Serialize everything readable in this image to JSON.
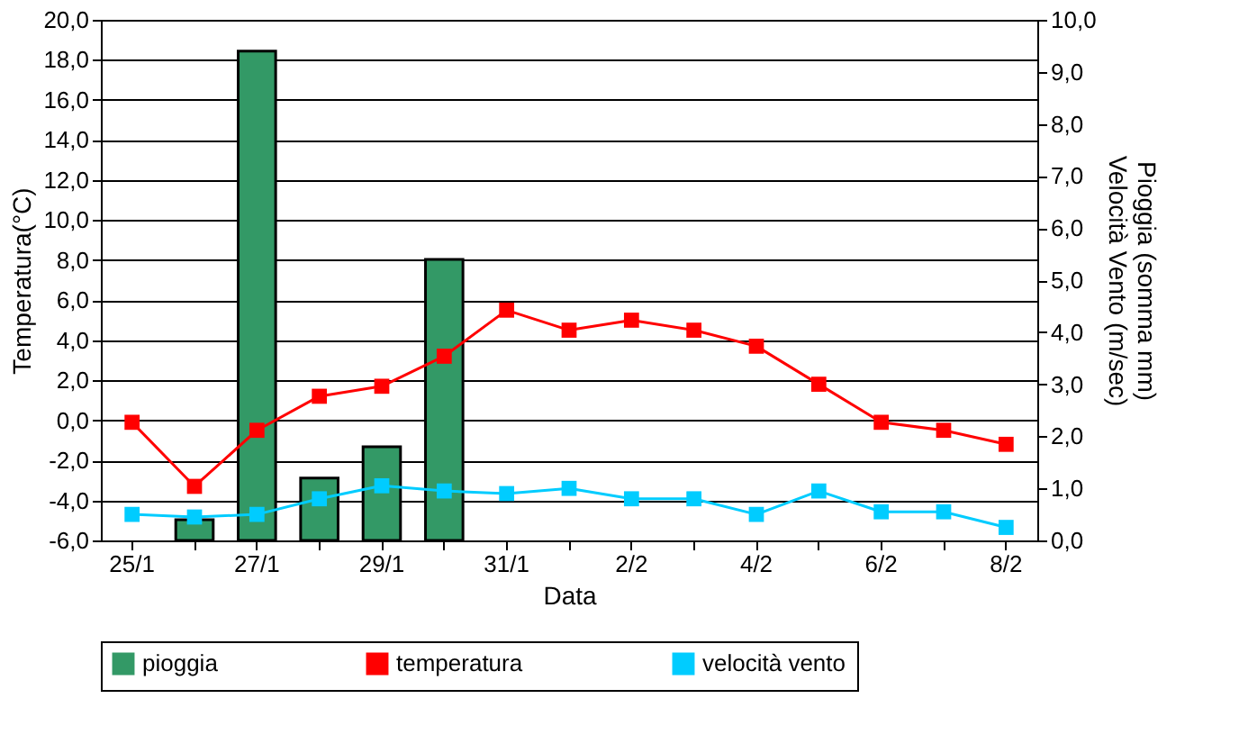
{
  "chart_data": {
    "type": "bar",
    "xlabel": "Data",
    "ylabel": "Temperatura(°C)",
    "y2label": "Pioggia (somma mm)\nVelocità Vento (m/sec)",
    "categories": [
      "25/1",
      null,
      "27/1",
      null,
      "29/1",
      null,
      "31/1",
      null,
      "2/2",
      null,
      "4/2",
      null,
      "6/2",
      null,
      "8/2"
    ],
    "series": [
      {
        "name": "pioggia",
        "axis": "y2",
        "color": "#339966",
        "values": [
          null,
          0.4,
          9.4,
          1.2,
          1.8,
          5.4,
          null,
          null,
          null,
          null,
          null,
          null,
          null,
          null,
          null
        ]
      },
      {
        "name": "temperatura",
        "type": "line",
        "axis": "y",
        "color": "#ff0000",
        "values": [
          -0.1,
          -3.3,
          -0.5,
          1.2,
          1.7,
          3.2,
          5.5,
          4.5,
          5.0,
          4.5,
          3.7,
          1.8,
          -0.1,
          -0.5,
          -1.2
        ]
      },
      {
        "name": "velocità vento",
        "type": "line",
        "axis": "y2",
        "color": "#00ccff",
        "values": [
          0.5,
          0.45,
          0.5,
          0.8,
          1.05,
          0.95,
          0.9,
          1.0,
          0.8,
          0.8,
          0.5,
          0.95,
          0.55,
          0.55,
          0.25
        ]
      }
    ],
    "ylim": [
      -6,
      20
    ],
    "yticks": [
      {
        "value": -6,
        "label": "-6,0"
      },
      {
        "value": -4,
        "label": "-4,0"
      },
      {
        "value": -2,
        "label": "-2,0"
      },
      {
        "value": 0,
        "label": "0,0"
      },
      {
        "value": 2,
        "label": "2,0"
      },
      {
        "value": 4,
        "label": "4,0"
      },
      {
        "value": 6,
        "label": "6,0"
      },
      {
        "value": 8,
        "label": "8,0"
      },
      {
        "value": 10,
        "label": "10,0"
      },
      {
        "value": 12,
        "label": "12,0"
      },
      {
        "value": 14,
        "label": "14,0"
      },
      {
        "value": 16,
        "label": "16,0"
      },
      {
        "value": 18,
        "label": "18,0"
      },
      {
        "value": 20,
        "label": "20,0"
      }
    ],
    "y2lim": [
      0,
      10
    ],
    "y2ticks": [
      {
        "value": 0,
        "label": "0,0"
      },
      {
        "value": 1,
        "label": "1,0"
      },
      {
        "value": 2,
        "label": "2,0"
      },
      {
        "value": 3,
        "label": "3,0"
      },
      {
        "value": 4,
        "label": "4,0"
      },
      {
        "value": 5,
        "label": "5,0"
      },
      {
        "value": 6,
        "label": "6,0"
      },
      {
        "value": 7,
        "label": "7,0"
      },
      {
        "value": 8,
        "label": "8,0"
      },
      {
        "value": 9,
        "label": "9,0"
      },
      {
        "value": 10,
        "label": "10,0"
      }
    ],
    "grid": "y",
    "legend": "bottom",
    "marker": "square"
  }
}
